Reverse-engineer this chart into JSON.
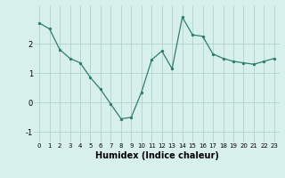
{
  "x": [
    0,
    1,
    2,
    3,
    4,
    5,
    6,
    7,
    8,
    9,
    10,
    11,
    12,
    13,
    14,
    15,
    16,
    17,
    18,
    19,
    20,
    21,
    22,
    23
  ],
  "y": [
    2.7,
    2.5,
    1.8,
    1.5,
    1.35,
    0.85,
    0.45,
    -0.05,
    -0.55,
    -0.5,
    0.35,
    1.45,
    1.75,
    1.15,
    2.9,
    2.3,
    2.25,
    1.65,
    1.5,
    1.4,
    1.35,
    1.3,
    1.4,
    1.5
  ],
  "xlabel": "Humidex (Indice chaleur)",
  "xlim": [
    -0.5,
    23.5
  ],
  "ylim": [
    -1.35,
    3.3
  ],
  "yticks": [
    -1,
    0,
    1,
    2
  ],
  "xticks": [
    0,
    1,
    2,
    3,
    4,
    5,
    6,
    7,
    8,
    9,
    10,
    11,
    12,
    13,
    14,
    15,
    16,
    17,
    18,
    19,
    20,
    21,
    22,
    23
  ],
  "line_color": "#2e7d6e",
  "bg_color": "#d8f0eb",
  "grid_color": "#aed4cd",
  "label_fontsize": 7,
  "tick_fontsize": 5
}
